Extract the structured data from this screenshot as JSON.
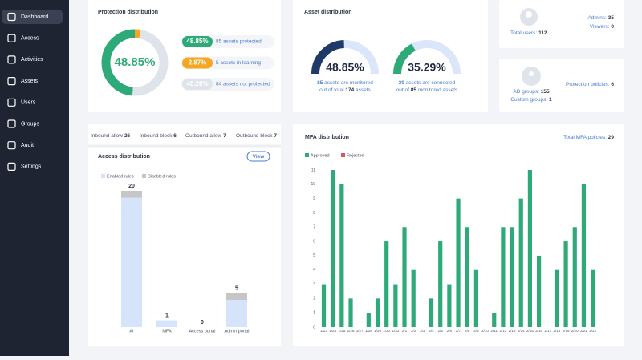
{
  "sidebar": {
    "items": [
      "Dashboard",
      "Access",
      "Activities",
      "Assets",
      "Users",
      "Groups",
      "Audit",
      "Settings"
    ]
  },
  "stats": {
    "users": {
      "label": "Total users:",
      "value": 112
    },
    "admins": {
      "label": "Admins:",
      "value": 35
    },
    "viewers": {
      "label": "Viewers:",
      "value": 0
    },
    "ad_groups": {
      "label": "AD groups:",
      "value": 155
    },
    "custom_groups": {
      "label": "Custom groups:",
      "value": 1
    },
    "protection_policies": {
      "label": "Protection policies:",
      "value": 6
    }
  },
  "rules": [
    {
      "label": "Inbound allow",
      "value": 26
    },
    {
      "label": "Inbound block",
      "value": 6
    },
    {
      "label": "Outbound allow",
      "value": 7
    },
    {
      "label": "Outbound block",
      "value": 7
    }
  ],
  "view_button": "View",
  "chart_data": [
    {
      "type": "pie",
      "title": "Protection distribution",
      "values": [
        48.85,
        2.87,
        48.28
      ],
      "value_labels": [
        "48.85%",
        "2.87%",
        "48.28%"
      ],
      "labels": [
        "85 assets protected",
        "5 assets in learning",
        "84 assets not protected"
      ],
      "colors": [
        "#2eaa78",
        "#f5a623",
        "#dfe3ea"
      ]
    },
    {
      "type": "gauge",
      "title": "Asset distribution",
      "values": [
        48.85,
        35.29
      ],
      "value_labels": [
        "48.85%",
        "35.29%"
      ],
      "colors": [
        "#1f3a68",
        "#2eaa78"
      ],
      "captions": [
        {
          "count": 85,
          "text": "assets are monitored",
          "pre": "out of total",
          "total": 174,
          "post": "assets"
        },
        {
          "count": 30,
          "text": "assets are connected",
          "pre": "out of",
          "total": 85,
          "post": "monitored assets"
        }
      ]
    },
    {
      "type": "stacked_bar",
      "title": "Access distribution",
      "categories": [
        "AI",
        "MFA",
        "Access portal",
        "Admin portal"
      ],
      "series": [
        {
          "name": "Enabled rules",
          "color": "#d6e4fb",
          "values": [
            19,
            1,
            0,
            4
          ]
        },
        {
          "name": "Disabled rules",
          "color": "#c6c6c6",
          "values": [
            1,
            0,
            0,
            1
          ]
        }
      ],
      "totals": [
        20,
        1,
        0,
        5
      ],
      "ylim": [
        0,
        20
      ]
    },
    {
      "type": "bar",
      "title": "MFA distribution",
      "subtitle": {
        "label": "Total MFA policies:",
        "value": 29
      },
      "categories": [
        "1/23",
        "1/24",
        "1/25",
        "1/26",
        "1/27",
        "1/28",
        "1/29",
        "1/30",
        "1/31",
        "2/1",
        "2/2",
        "2/3",
        "2/4",
        "2/5",
        "2/6",
        "2/7",
        "2/8",
        "2/9",
        "2/10",
        "2/11",
        "2/12",
        "2/13",
        "2/14",
        "2/15",
        "2/16",
        "2/17",
        "2/18",
        "2/19",
        "2/20",
        "2/21",
        "2/22"
      ],
      "series": [
        {
          "name": "Approved",
          "color": "#2eaa78",
          "values": [
            3,
            11,
            10,
            2,
            0,
            1,
            2,
            6,
            3,
            7,
            4,
            0,
            2,
            6,
            3,
            9,
            7,
            4,
            0,
            1,
            7,
            7,
            9,
            11,
            5,
            0,
            4,
            6,
            7,
            10,
            4
          ]
        },
        {
          "name": "Rejected",
          "color": "#e0554e",
          "values": [
            0,
            0,
            0,
            0,
            0,
            0,
            0,
            0,
            0,
            0,
            0,
            0,
            0,
            0,
            0,
            0,
            0,
            0,
            0,
            0,
            0,
            0,
            0,
            0,
            0,
            0,
            0,
            0,
            0,
            0,
            0
          ]
        }
      ],
      "ylim": [
        0,
        11
      ],
      "yticks": [
        0,
        1,
        2,
        3,
        4,
        5,
        6,
        7,
        8,
        9,
        10,
        11
      ]
    }
  ]
}
